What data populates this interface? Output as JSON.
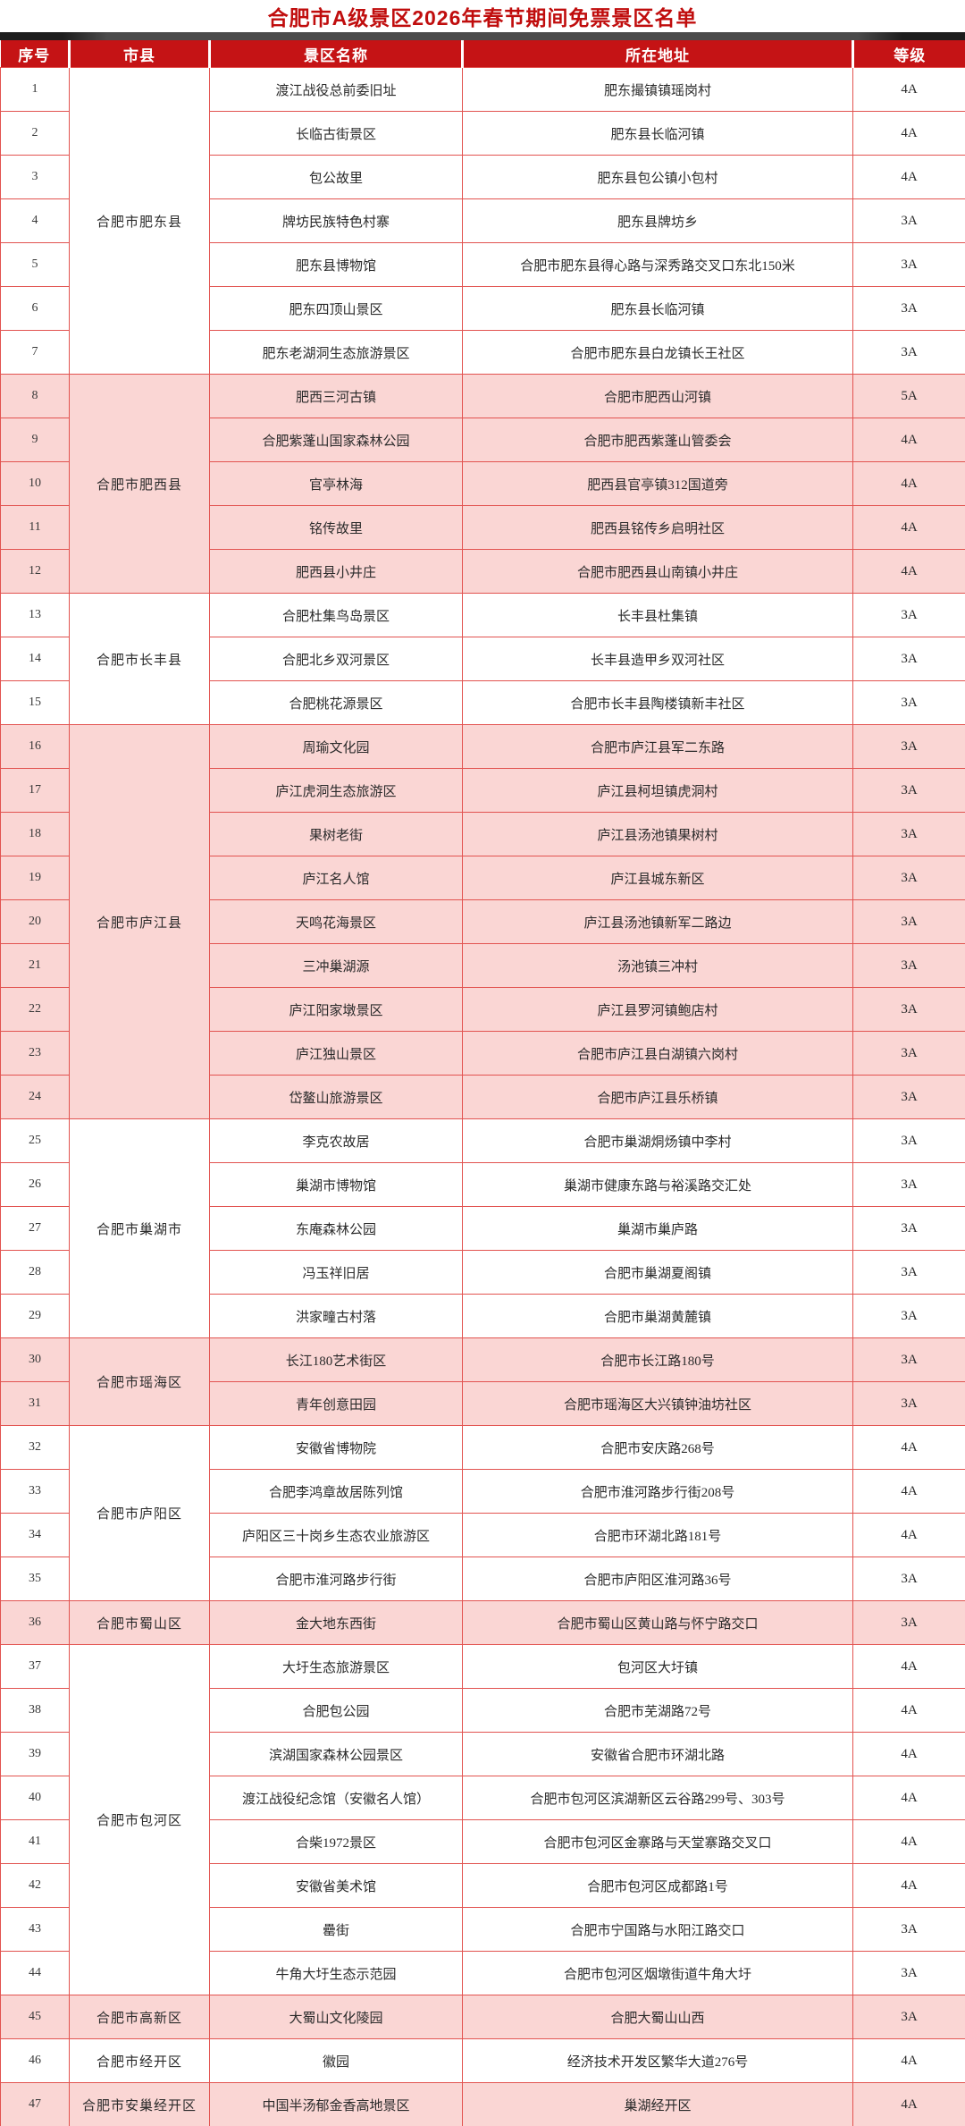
{
  "title": "合肥市A级景区2026年春节期间免票景区名单",
  "header": {
    "columns": [
      "序号",
      "市县",
      "景区名称",
      "所在地址",
      "等级"
    ]
  },
  "colors": {
    "header_bg": "#c51315",
    "border": "#e25350",
    "pink_row": "#fad6d4",
    "title_red": "#c00d0d",
    "top_bar": "#3c3c3c"
  },
  "groups": [
    {
      "county": "合肥市肥东县",
      "tone": "white",
      "rows": [
        {
          "no": "1",
          "name": "渡江战役总前委旧址",
          "address": "肥东撮镇镇瑶岗村",
          "level": "4A"
        },
        {
          "no": "2",
          "name": "长临古街景区",
          "address": "肥东县长临河镇",
          "level": "4A"
        },
        {
          "no": "3",
          "name": "包公故里",
          "address": "肥东县包公镇小包村",
          "level": "4A"
        },
        {
          "no": "4",
          "name": "牌坊民族特色村寨",
          "address": "肥东县牌坊乡",
          "level": "3A"
        },
        {
          "no": "5",
          "name": "肥东县博物馆",
          "address": "合肥市肥东县得心路与深秀路交叉口东北150米",
          "level": "3A"
        },
        {
          "no": "6",
          "name": "肥东四顶山景区",
          "address": "肥东县长临河镇",
          "level": "3A"
        },
        {
          "no": "7",
          "name": "肥东老湖洞生态旅游景区",
          "address": "合肥市肥东县白龙镇长王社区",
          "level": "3A"
        }
      ]
    },
    {
      "county": "合肥市肥西县",
      "tone": "pink",
      "rows": [
        {
          "no": "8",
          "name": "肥西三河古镇",
          "address": "合肥市肥西山河镇",
          "level": "5A"
        },
        {
          "no": "9",
          "name": "合肥紫蓬山国家森林公园",
          "address": "合肥市肥西紫蓬山管委会",
          "level": "4A"
        },
        {
          "no": "10",
          "name": "官亭林海",
          "address": "肥西县官亭镇312国道旁",
          "level": "4A"
        },
        {
          "no": "11",
          "name": "铭传故里",
          "address": "肥西县铭传乡启明社区",
          "level": "4A"
        },
        {
          "no": "12",
          "name": "肥西县小井庄",
          "address": "合肥市肥西县山南镇小井庄",
          "level": "4A"
        }
      ]
    },
    {
      "county": "合肥市长丰县",
      "tone": "white",
      "rows": [
        {
          "no": "13",
          "name": "合肥杜集鸟岛景区",
          "address": "长丰县杜集镇",
          "level": "3A"
        },
        {
          "no": "14",
          "name": "合肥北乡双河景区",
          "address": "长丰县造甲乡双河社区",
          "level": "3A"
        },
        {
          "no": "15",
          "name": "合肥桃花源景区",
          "address": "合肥市长丰县陶楼镇新丰社区",
          "level": "3A"
        }
      ]
    },
    {
      "county": "合肥市庐江县",
      "tone": "pink",
      "rows": [
        {
          "no": "16",
          "name": "周瑜文化园",
          "address": "合肥市庐江县军二东路",
          "level": "3A"
        },
        {
          "no": "17",
          "name": "庐江虎洞生态旅游区",
          "address": "庐江县柯坦镇虎洞村",
          "level": "3A"
        },
        {
          "no": "18",
          "name": "果树老街",
          "address": "庐江县汤池镇果树村",
          "level": "3A"
        },
        {
          "no": "19",
          "name": "庐江名人馆",
          "address": "庐江县城东新区",
          "level": "3A"
        },
        {
          "no": "20",
          "name": "天鸣花海景区",
          "address": "庐江县汤池镇新军二路边",
          "level": "3A"
        },
        {
          "no": "21",
          "name": "三冲巢湖源",
          "address": "汤池镇三冲村",
          "level": "3A"
        },
        {
          "no": "22",
          "name": "庐江阳家墩景区",
          "address": "庐江县罗河镇鲍店村",
          "level": "3A"
        },
        {
          "no": "23",
          "name": "庐江独山景区",
          "address": "合肥市庐江县白湖镇六岗村",
          "level": "3A"
        },
        {
          "no": "24",
          "name": "岱鳌山旅游景区",
          "address": "合肥市庐江县乐桥镇",
          "level": "3A"
        }
      ]
    },
    {
      "county": "合肥市巢湖市",
      "tone": "white",
      "rows": [
        {
          "no": "25",
          "name": "李克农故居",
          "address": "合肥市巢湖烔炀镇中李村",
          "level": "3A"
        },
        {
          "no": "26",
          "name": "巢湖市博物馆",
          "address": "巢湖市健康东路与裕溪路交汇处",
          "level": "3A"
        },
        {
          "no": "27",
          "name": "东庵森林公园",
          "address": "巢湖市巢庐路",
          "level": "3A"
        },
        {
          "no": "28",
          "name": "冯玉祥旧居",
          "address": "合肥市巢湖夏阁镇",
          "level": "3A"
        },
        {
          "no": "29",
          "name": "洪家疃古村落",
          "address": "合肥市巢湖黄麓镇",
          "level": "3A"
        }
      ]
    },
    {
      "county": "合肥市瑶海区",
      "tone": "pink",
      "rows": [
        {
          "no": "30",
          "name": "长江180艺术街区",
          "address": "合肥市长江路180号",
          "level": "3A"
        },
        {
          "no": "31",
          "name": "青年创意田园",
          "address": "合肥市瑶海区大兴镇钟油坊社区",
          "level": "3A"
        }
      ]
    },
    {
      "county": "合肥市庐阳区",
      "tone": "white",
      "rows": [
        {
          "no": "32",
          "name": "安徽省博物院",
          "address": "合肥市安庆路268号",
          "level": "4A"
        },
        {
          "no": "33",
          "name": "合肥李鸿章故居陈列馆",
          "address": "合肥市淮河路步行街208号",
          "level": "4A"
        },
        {
          "no": "34",
          "name": "庐阳区三十岗乡生态农业旅游区",
          "address": "合肥市环湖北路181号",
          "level": "4A"
        },
        {
          "no": "35",
          "name": "合肥市淮河路步行街",
          "address": "合肥市庐阳区淮河路36号",
          "level": "3A"
        }
      ]
    },
    {
      "county": "合肥市蜀山区",
      "tone": "pink",
      "rows": [
        {
          "no": "36",
          "name": "金大地东西街",
          "address": "合肥市蜀山区黄山路与怀宁路交口",
          "level": "3A"
        }
      ]
    },
    {
      "county": "合肥市包河区",
      "tone": "white",
      "rows": [
        {
          "no": "37",
          "name": "大圩生态旅游景区",
          "address": "包河区大圩镇",
          "level": "4A"
        },
        {
          "no": "38",
          "name": "合肥包公园",
          "address": "合肥市芜湖路72号",
          "level": "4A"
        },
        {
          "no": "39",
          "name": "滨湖国家森林公园景区",
          "address": "安徽省合肥市环湖北路",
          "level": "4A"
        },
        {
          "no": "40",
          "name": "渡江战役纪念馆（安徽名人馆）",
          "address": "合肥市包河区滨湖新区云谷路299号、303号",
          "level": "4A"
        },
        {
          "no": "41",
          "name": "合柴1972景区",
          "address": "合肥市包河区金寨路与天堂寨路交叉口",
          "level": "4A"
        },
        {
          "no": "42",
          "name": "安徽省美术馆",
          "address": "合肥市包河区成都路1号",
          "level": "4A"
        },
        {
          "no": "43",
          "name": "罍街",
          "address": "合肥市宁国路与水阳江路交口",
          "level": "3A"
        },
        {
          "no": "44",
          "name": "牛角大圩生态示范园",
          "address": "合肥市包河区烟墩街道牛角大圩",
          "level": "3A"
        }
      ]
    },
    {
      "county": "合肥市高新区",
      "tone": "pink",
      "rows": [
        {
          "no": "45",
          "name": "大蜀山文化陵园",
          "address": "合肥大蜀山山西",
          "level": "3A"
        }
      ]
    },
    {
      "county": "合肥市经开区",
      "tone": "white",
      "rows": [
        {
          "no": "46",
          "name": "徽园",
          "address": "经济技术开发区繁华大道276号",
          "level": "4A"
        }
      ]
    },
    {
      "county": "合肥市安巢经开区",
      "tone": "pink",
      "rows": [
        {
          "no": "47",
          "name": "中国半汤郁金香高地景区",
          "address": "巢湖经开区",
          "level": "4A"
        }
      ]
    }
  ]
}
